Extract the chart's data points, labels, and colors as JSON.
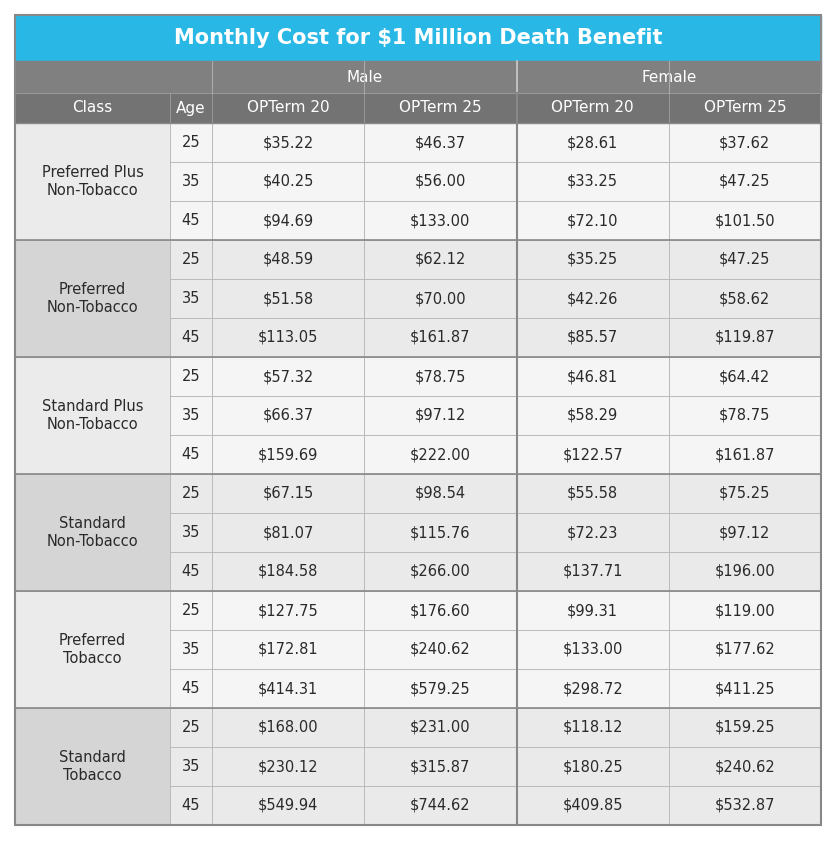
{
  "title": "Monthly Cost for $1 Million Death Benefit",
  "title_bg": "#29B8E5",
  "title_color": "#FFFFFF",
  "header2_bg": "#808080",
  "header2_color": "#FFFFFF",
  "header3_bg": "#737373",
  "header3_color": "#FFFFFF",
  "col_headers": [
    "Class",
    "Age",
    "OPTerm 20",
    "OPTerm 25",
    "OPTerm 20",
    "OPTerm 25"
  ],
  "gender_headers": [
    "Male",
    "Female"
  ],
  "classes": [
    "Preferred Plus\nNon-Tobacco",
    "Preferred\nNon-Tobacco",
    "Standard Plus\nNon-Tobacco",
    "Standard\nNon-Tobacco",
    "Preferred\nTobacco",
    "Standard\nTobacco"
  ],
  "ages": [
    25,
    35,
    45
  ],
  "data": [
    [
      [
        "$35.22",
        "$46.37",
        "$28.61",
        "$37.62"
      ],
      [
        "$40.25",
        "$56.00",
        "$33.25",
        "$47.25"
      ],
      [
        "$94.69",
        "$133.00",
        "$72.10",
        "$101.50"
      ]
    ],
    [
      [
        "$48.59",
        "$62.12",
        "$35.25",
        "$47.25"
      ],
      [
        "$51.58",
        "$70.00",
        "$42.26",
        "$58.62"
      ],
      [
        "$113.05",
        "$161.87",
        "$85.57",
        "$119.87"
      ]
    ],
    [
      [
        "$57.32",
        "$78.75",
        "$46.81",
        "$64.42"
      ],
      [
        "$66.37",
        "$97.12",
        "$58.29",
        "$78.75"
      ],
      [
        "$159.69",
        "$222.00",
        "$122.57",
        "$161.87"
      ]
    ],
    [
      [
        "$67.15",
        "$98.54",
        "$55.58",
        "$75.25"
      ],
      [
        "$81.07",
        "$115.76",
        "$72.23",
        "$97.12"
      ],
      [
        "$184.58",
        "$266.00",
        "$137.71",
        "$196.00"
      ]
    ],
    [
      [
        "$127.75",
        "$176.60",
        "$99.31",
        "$119.00"
      ],
      [
        "$172.81",
        "$240.62",
        "$133.00",
        "$177.62"
      ],
      [
        "$414.31",
        "$579.25",
        "$298.72",
        "$411.25"
      ]
    ],
    [
      [
        "$168.00",
        "$231.00",
        "$118.12",
        "$159.25"
      ],
      [
        "$230.12",
        "$315.87",
        "$180.25",
        "$240.62"
      ],
      [
        "$549.94",
        "$744.62",
        "$409.85",
        "$532.87"
      ]
    ]
  ],
  "row_bg_odd": "#EAEAEA",
  "row_bg_even": "#F5F5F5",
  "class_bg_odd": "#D5D5D5",
  "class_bg_even": "#EBEBEB",
  "border_color": "#BBBBBB",
  "text_color": "#2A2A2A",
  "class_text_color": "#2A2A2A",
  "title_fontsize": 15,
  "header_fontsize": 11,
  "data_fontsize": 10.5,
  "age_fontsize": 10.5
}
